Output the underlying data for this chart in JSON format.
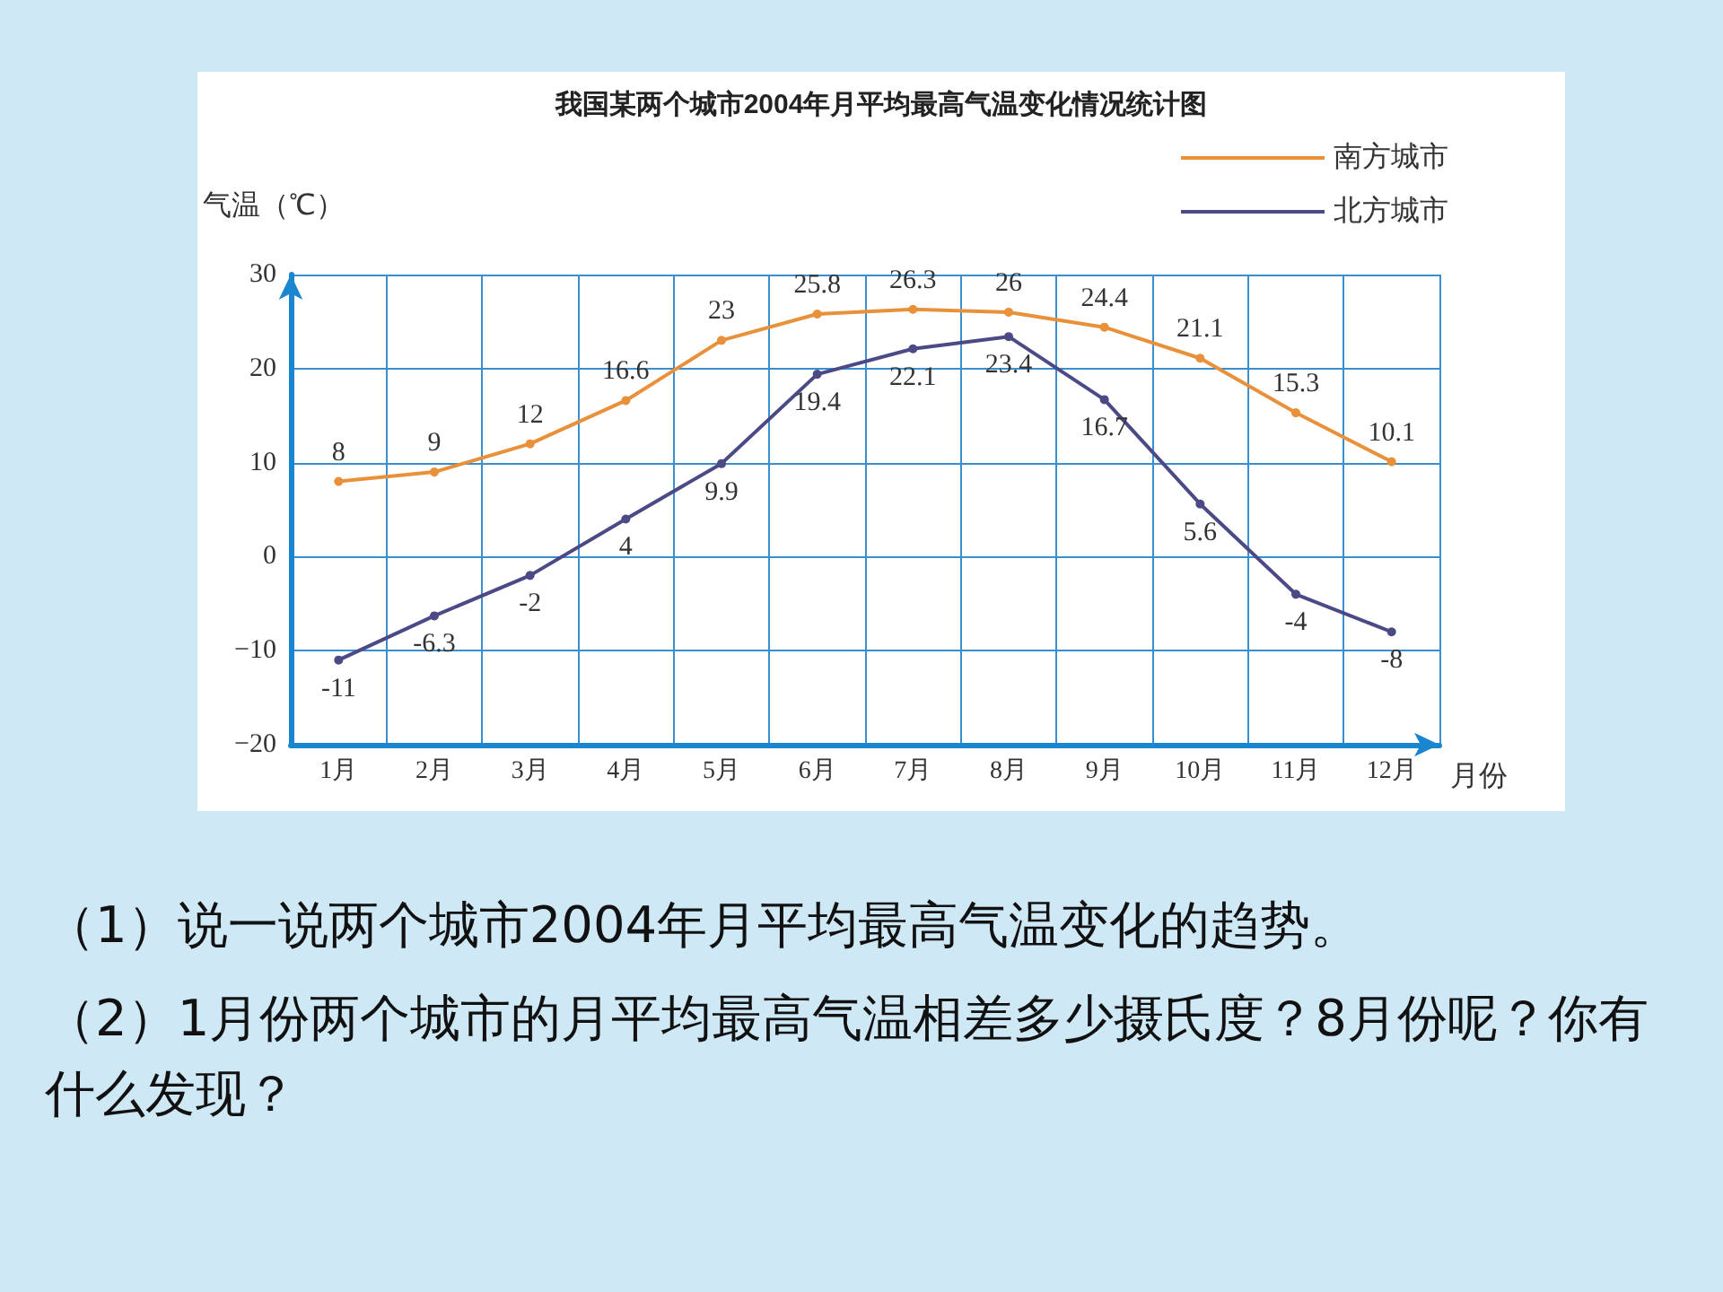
{
  "chart_data": {
    "type": "line",
    "title": "我国某两个城市2004年月平均最高气温变化情况统计图",
    "ylabel": "气温（℃）",
    "xlabel": "月份",
    "categories": [
      "1月",
      "2月",
      "3月",
      "4月",
      "5月",
      "6月",
      "7月",
      "8月",
      "9月",
      "10月",
      "11月",
      "12月"
    ],
    "series": [
      {
        "name": "南方城市",
        "color": "#e8913a",
        "values": [
          8,
          9,
          12,
          16.6,
          23,
          25.8,
          26.3,
          26,
          24.4,
          21.1,
          15.3,
          10.1
        ]
      },
      {
        "name": "北方城市",
        "color": "#4b4a86",
        "values": [
          -11,
          -6.3,
          -2,
          4,
          9.9,
          19.4,
          22.1,
          23.4,
          16.7,
          5.6,
          -4,
          -8
        ]
      }
    ],
    "ylim": [
      -20,
      30
    ],
    "yticks": [
      -20,
      -10,
      0,
      10,
      20,
      30
    ],
    "grid": true,
    "legend": "top right",
    "marker": "circle",
    "line_style": "solid",
    "data_labels": true,
    "annotations": [
      "（1）说一说两个城市2004年月平均最高气温变化的趋势。",
      "（2）1月份两个城市的月平均最高气温相差多少摄氏度？8月份呢？你有什么发现？"
    ]
  }
}
